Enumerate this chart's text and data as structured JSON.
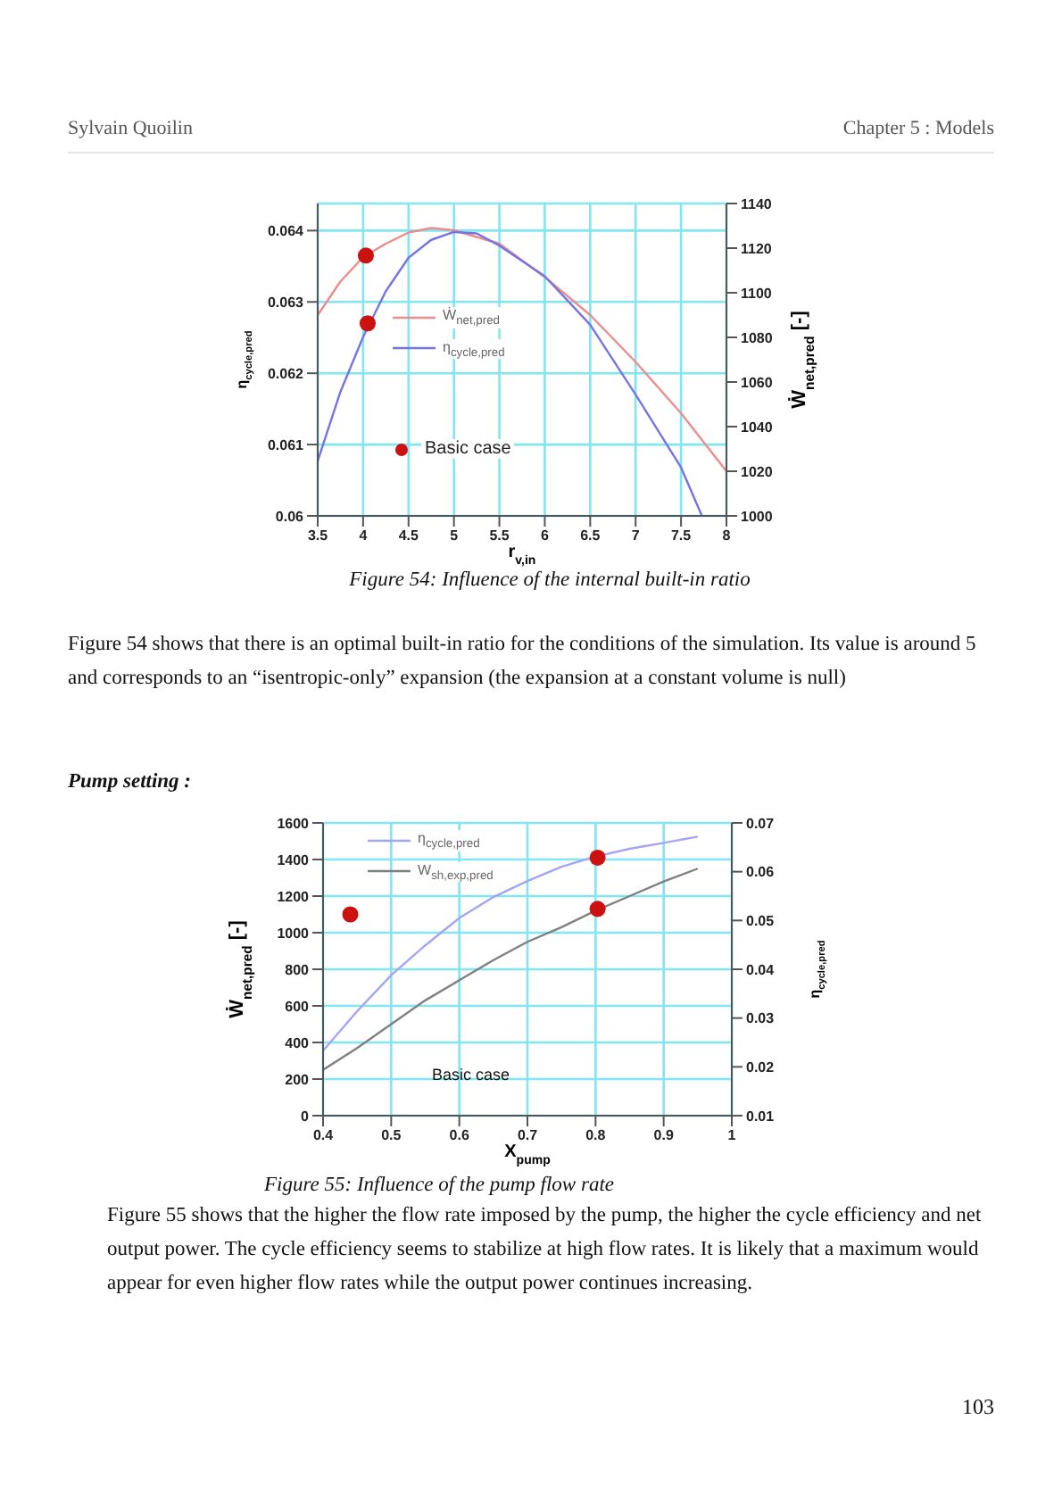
{
  "chart_data": [
    {
      "type": "line",
      "xlabel": "r$_{v,in}$",
      "ylabel": "η$_{cycle,pred}$",
      "y2label": "Ẇ$_{net,pred}$ [-]",
      "xlim": [
        3.5,
        8
      ],
      "xticks": [
        3.5,
        4,
        4.5,
        5,
        5.5,
        6,
        6.5,
        7,
        7.5,
        8
      ],
      "ylim": [
        0.06,
        0.06438
      ],
      "yticks": [
        0.06,
        0.061,
        0.062,
        0.063,
        0.064
      ],
      "y2lim": [
        1000,
        1140
      ],
      "y2ticks": [
        1000,
        1020,
        1040,
        1060,
        1080,
        1100,
        1120,
        1140
      ],
      "grid": true,
      "legend": "left",
      "series": [
        {
          "name": "Ẇ$_{net,pred}$",
          "color": "#ec8c8c",
          "axis": "y2",
          "x": [
            3.5,
            3.75,
            4,
            4.25,
            4.5,
            4.75,
            5,
            5.5,
            6,
            6.5,
            7,
            7.5,
            8
          ],
          "values": [
            1090,
            1105,
            1116,
            1122,
            1127,
            1129,
            1128,
            1122,
            1107,
            1090,
            1069,
            1046,
            1020
          ]
        },
        {
          "name": "η$_{cycle,pred}$",
          "color": "#7474e4",
          "x": [
            3.5,
            3.75,
            4,
            4.25,
            4.5,
            4.75,
            5,
            5.25,
            5.5,
            6,
            6.5,
            7,
            7.5,
            7.73
          ],
          "values": [
            0.06077,
            0.06174,
            0.06251,
            0.06315,
            0.06362,
            0.06387,
            0.06398,
            0.06396,
            0.06379,
            0.06336,
            0.06268,
            0.0617,
            0.06068,
            0.06
          ]
        },
        {
          "name": "Basic case",
          "type": "scatter",
          "marker": "circle",
          "color": "#cc1111",
          "x": [
            4.03,
            4.05
          ],
          "values": [
            0.06365,
            0.0627
          ]
        }
      ],
      "annotations": [
        "Sylvain Quoilin",
        "Chapter 5 : Models",
        "Figure 54: Influence of the internal built-in ratio",
        "Figure 54 shows that there is an optimal built-in ratio for the conditions of the simulation. Its value is around 5 and corresponds to an “isentropic-only” expansion (the expansion at a constant volume is null)",
        "Pump setting :",
        "103"
      ]
    },
    {
      "type": "line",
      "xlabel": "X$_{pump}$",
      "ylabel": "Ẇ$_{net,pred}$ [-]",
      "y2label": "η$_{cycle,pred}$",
      "xlim": [
        0.4,
        1
      ],
      "xticks": [
        0.4,
        0.5,
        0.6,
        0.7,
        0.8,
        0.9,
        1
      ],
      "ylim": [
        0,
        1600
      ],
      "yticks": [
        0,
        200,
        400,
        600,
        800,
        1000,
        1200,
        1400,
        1600
      ],
      "y2lim": [
        0.01,
        0.07
      ],
      "y2ticks": [
        0.01,
        0.02,
        0.03,
        0.04,
        0.05,
        0.06,
        0.07
      ],
      "grid": true,
      "legend": "top left",
      "series": [
        {
          "name": "η$_{cycle,pred}$",
          "color": "#a4a4f4",
          "axis": "y2",
          "x": [
            0.4,
            0.45,
            0.5,
            0.55,
            0.6,
            0.65,
            0.7,
            0.75,
            0.8,
            0.85,
            0.9,
            0.95
          ],
          "values": [
            0.0233,
            0.0314,
            0.0388,
            0.0449,
            0.0505,
            0.0548,
            0.0581,
            0.061,
            0.0631,
            0.0647,
            0.0659,
            0.0672
          ]
        },
        {
          "name": "W$_{sh,exp,pred}$",
          "color": "#808080",
          "x": [
            0.4,
            0.45,
            0.5,
            0.55,
            0.6,
            0.65,
            0.7,
            0.75,
            0.8,
            0.85,
            0.9,
            0.95
          ],
          "values": [
            250,
            370,
            500,
            630,
            740,
            850,
            950,
            1030,
            1120,
            1200,
            1280,
            1350
          ]
        },
        {
          "type": "scatter",
          "marker": "circle",
          "color": "#cc1111",
          "x": [
            0.44,
            0.803,
            0.803
          ],
          "values": [
            1100,
            1410,
            1130
          ]
        }
      ],
      "annotations": [
        "Basic case",
        "Figure 55: Influence of the pump flow rate",
        "Figure 55 shows that the higher the flow rate imposed by the pump, the higher the cycle efficiency and net output power.   The cycle efficiency seems to stabilize at high flow rates.  It is likely that a maximum would appear for even higher flow rates while the output power continues increasing."
      ]
    }
  ]
}
